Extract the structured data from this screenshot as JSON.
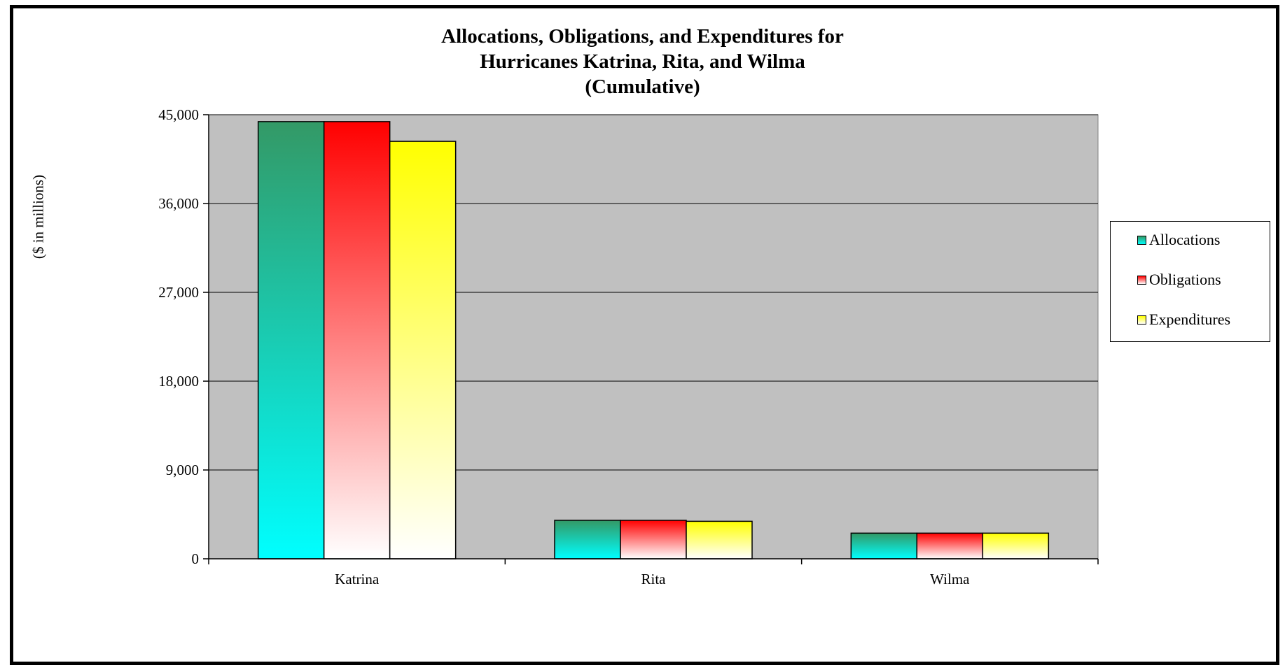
{
  "chart_data": {
    "type": "bar",
    "title_lines": [
      "Allocations, Obligations, and Expenditures for",
      "Hurricanes Katrina, Rita, and Wilma",
      "(Cumulative)"
    ],
    "xlabel": "",
    "ylabel": "($ in millions)",
    "ylim": [
      0,
      45000
    ],
    "yticks": [
      0,
      9000,
      18000,
      27000,
      36000,
      45000
    ],
    "ytick_labels": [
      "0",
      "9,000",
      "18,000",
      "27,000",
      "36,000",
      "45,000"
    ],
    "categories": [
      "Katrina",
      "Rita",
      "Wilma"
    ],
    "series": [
      {
        "name": "Allocations",
        "values": [
          44300,
          3900,
          2600
        ],
        "color_top": "#339966",
        "color_bottom": "#00ffff"
      },
      {
        "name": "Obligations",
        "values": [
          44300,
          3900,
          2600
        ],
        "color_top": "#ff0000",
        "color_bottom": "#ffffff"
      },
      {
        "name": "Expenditures",
        "values": [
          42300,
          3800,
          2600
        ],
        "color_top": "#ffff00",
        "color_bottom": "#ffffff"
      }
    ],
    "plot_background": "#c0c0c0",
    "grid": true,
    "legend_position": "right"
  }
}
